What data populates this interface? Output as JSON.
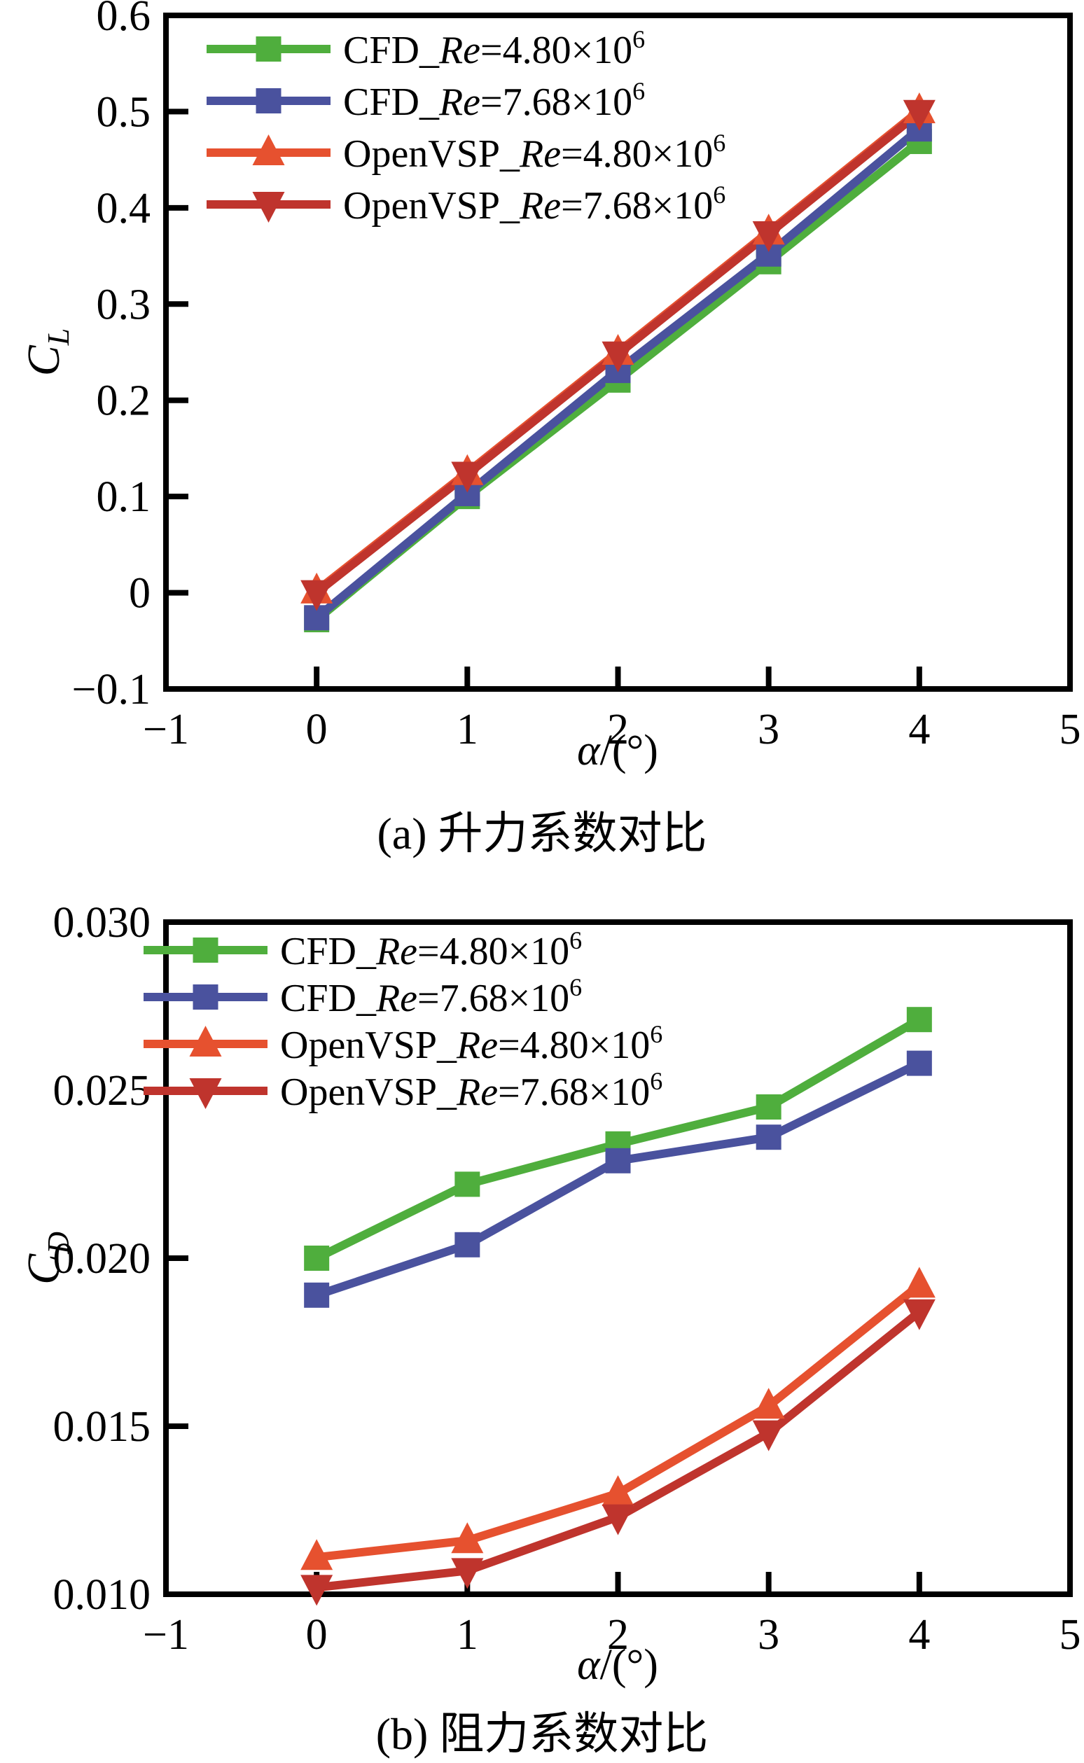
{
  "chart_data": [
    {
      "type": "line",
      "caption": "(a) 升力系数对比",
      "xlabel_sym": "α",
      "xlabel_rest": "/(°)",
      "ylabel_base": "C",
      "ylabel_sub": "L",
      "xlim": [
        -1,
        5
      ],
      "ylim": [
        -0.1,
        0.6
      ],
      "grid": false,
      "legend_position": "inside-top-left",
      "xtick_values": [
        -1,
        0,
        1,
        2,
        3,
        4,
        5
      ],
      "xtick_labels": [
        "−1",
        "0",
        "1",
        "2",
        "3",
        "4",
        "5"
      ],
      "ytick_values": [
        -0.1,
        0,
        0.1,
        0.2,
        0.3,
        0.4,
        0.5,
        0.6
      ],
      "ytick_labels": [
        "−0.1",
        "0",
        "0.1",
        "0.2",
        "0.3",
        "0.4",
        "0.5",
        "0.6"
      ],
      "x": [
        0,
        1,
        2,
        3,
        4
      ],
      "series": [
        {
          "key": "cfd-re-480e6",
          "legend_pre": "CFD_",
          "legend_re": "Re",
          "legend_mid": "=4.80×10",
          "legend_sup": "6",
          "color": "#4fae3d",
          "marker": "square",
          "values": [
            -0.028,
            0.1,
            0.221,
            0.344,
            0.469
          ]
        },
        {
          "key": "cfd-re-768e6",
          "legend_pre": "CFD_",
          "legend_re": "Re",
          "legend_mid": "=7.68×10",
          "legend_sup": "6",
          "color": "#4a529e",
          "marker": "square",
          "values": [
            -0.026,
            0.103,
            0.231,
            0.352,
            0.482
          ]
        },
        {
          "key": "openvsp-re-480e6",
          "legend_pre": "OpenVSP_",
          "legend_re": "Re",
          "legend_mid": "=4.80×10",
          "legend_sup": "6",
          "color": "#e6512f",
          "marker": "triangle-up",
          "values": [
            0.002,
            0.125,
            0.25,
            0.375,
            0.501
          ]
        },
        {
          "key": "openvsp-re-768e6",
          "legend_pre": "OpenVSP_",
          "legend_re": "Re",
          "legend_mid": "=7.68×10",
          "legend_sup": "6",
          "color": "#bf342d",
          "marker": "triangle-down",
          "values": [
            0.0,
            0.123,
            0.248,
            0.373,
            0.499
          ]
        }
      ]
    },
    {
      "type": "line",
      "caption": "(b) 阻力系数对比",
      "xlabel_sym": "α",
      "xlabel_rest": "/(°)",
      "ylabel_base": "C",
      "ylabel_sub": "D",
      "xlim": [
        -1,
        5
      ],
      "ylim": [
        0.01,
        0.03
      ],
      "grid": false,
      "legend_position": "inside-top-left",
      "xtick_values": [
        -1,
        0,
        1,
        2,
        3,
        4,
        5
      ],
      "xtick_labels": [
        "−1",
        "0",
        "1",
        "2",
        "3",
        "4",
        "5"
      ],
      "ytick_values": [
        0.01,
        0.015,
        0.02,
        0.025,
        0.03
      ],
      "ytick_labels": [
        "0.010",
        "0.015",
        "0.020",
        "0.025",
        "0.030"
      ],
      "x": [
        0,
        1,
        2,
        3,
        4
      ],
      "series": [
        {
          "key": "cfd-re-480e6",
          "legend_pre": "CFD_",
          "legend_re": "Re",
          "legend_mid": "=4.80×10",
          "legend_sup": "6",
          "color": "#4fae3d",
          "marker": "square",
          "values": [
            0.02,
            0.0222,
            0.0234,
            0.0245,
            0.0271
          ]
        },
        {
          "key": "cfd-re-768e6",
          "legend_pre": "CFD_",
          "legend_re": "Re",
          "legend_mid": "=7.68×10",
          "legend_sup": "6",
          "color": "#4a529e",
          "marker": "square",
          "values": [
            0.0189,
            0.0204,
            0.0229,
            0.0236,
            0.0258
          ]
        },
        {
          "key": "openvsp-re-480e6",
          "legend_pre": "OpenVSP_",
          "legend_re": "Re",
          "legend_mid": "=4.80×10",
          "legend_sup": "6",
          "color": "#e6512f",
          "marker": "triangle-up",
          "values": [
            0.0111,
            0.0116,
            0.013,
            0.0156,
            0.0192
          ]
        },
        {
          "key": "openvsp-re-768e6",
          "legend_pre": "OpenVSP_",
          "legend_re": "Re",
          "legend_mid": "=7.68×10",
          "legend_sup": "6",
          "color": "#bf342d",
          "marker": "triangle-down",
          "values": [
            0.0102,
            0.0107,
            0.0123,
            0.0148,
            0.0184
          ]
        }
      ]
    }
  ]
}
